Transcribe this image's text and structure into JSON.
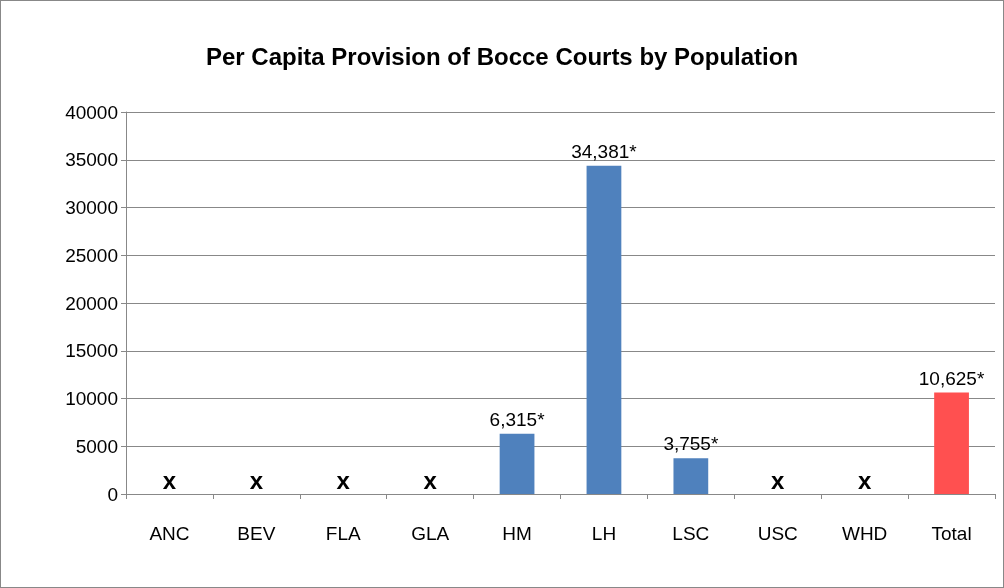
{
  "chart_data": {
    "type": "bar",
    "title": "Per Capita Provision of Bocce Courts by Population",
    "categories": [
      "ANC",
      "BEV",
      "FLA",
      "GLA",
      "HM",
      "LH",
      "LSC",
      "USC",
      "WHD",
      "Total"
    ],
    "values": [
      null,
      null,
      null,
      null,
      6315,
      34381,
      3755,
      null,
      null,
      10625
    ],
    "colors": [
      "#4f81bd",
      "#4f81bd",
      "#4f81bd",
      "#4f81bd",
      "#4f81bd",
      "#4f81bd",
      "#4f81bd",
      "#4f81bd",
      "#4f81bd",
      "#ff5050"
    ],
    "value_labels": [
      "x",
      "x",
      "x",
      "x",
      "6,315*",
      "34,381*",
      "3,755*",
      "x",
      "x",
      "10,625*"
    ],
    "ylim": [
      0,
      40000
    ],
    "yticks": [
      0,
      5000,
      10000,
      15000,
      20000,
      25000,
      30000,
      35000,
      40000
    ],
    "grid": "y"
  }
}
